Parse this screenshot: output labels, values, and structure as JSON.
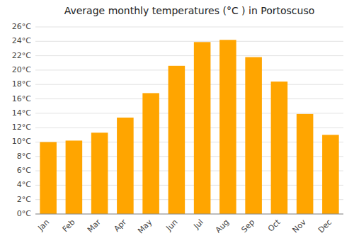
{
  "chart_data": {
    "type": "bar",
    "title": "Average monthly temperatures (°C ) in Portoscuso",
    "categories": [
      "Jan",
      "Feb",
      "Mar",
      "Apr",
      "May",
      "Jun",
      "Jul",
      "Aug",
      "Sep",
      "Oct",
      "Nov",
      "Dec"
    ],
    "values": [
      10.0,
      10.2,
      11.3,
      13.4,
      16.8,
      20.6,
      23.9,
      24.2,
      21.8,
      18.4,
      13.9,
      11.0
    ],
    "color": "#FFA500",
    "ylim": [
      0,
      26
    ],
    "yticks": [
      {
        "value": 0,
        "label": "0°C"
      },
      {
        "value": 2,
        "label": "2°C"
      },
      {
        "value": 4,
        "label": "4°C"
      },
      {
        "value": 6,
        "label": "6°C"
      },
      {
        "value": 8,
        "label": "8°C"
      },
      {
        "value": 10,
        "label": "10°C"
      },
      {
        "value": 12,
        "label": "12°C"
      },
      {
        "value": 14,
        "label": "14°C"
      },
      {
        "value": 16,
        "label": "16°C"
      },
      {
        "value": 18,
        "label": "18°C"
      },
      {
        "value": 20,
        "label": "20°C"
      },
      {
        "value": 22,
        "label": "22°C"
      },
      {
        "value": 24,
        "label": "24°C"
      },
      {
        "value": 26,
        "label": "26°C"
      }
    ],
    "grid": true
  }
}
